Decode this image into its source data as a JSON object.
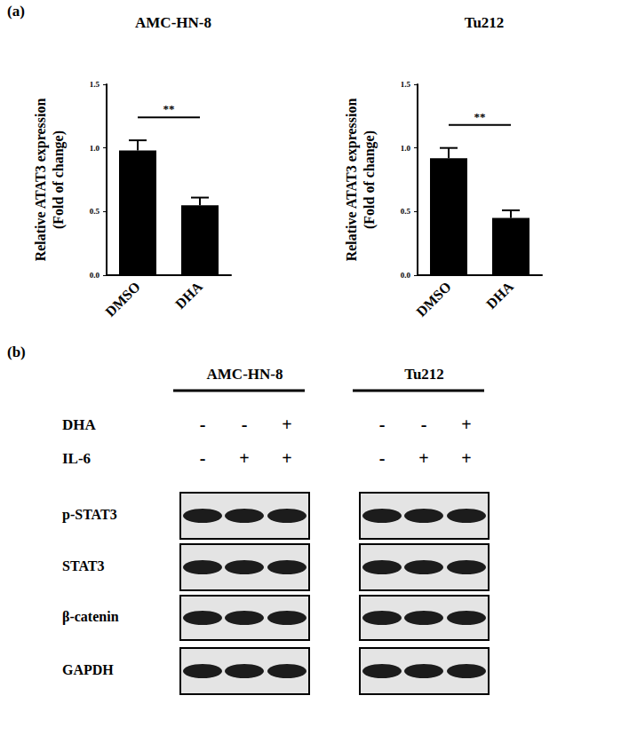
{
  "panel_label": "(a)",
  "chart_data": [
    {
      "type": "bar",
      "title": "AMC-HN-8",
      "categories": [
        "DMSO",
        "DHA"
      ],
      "values": [
        0.98,
        0.55
      ],
      "errors": [
        0.08,
        0.06
      ],
      "color": "#000000",
      "ylabel": "Relative ATAT3 expression\n(Fold of change)",
      "ylim": [
        0,
        1.5
      ],
      "yticks": [
        {
          "value": 0,
          "label": "0.0"
        },
        {
          "value": 0.5,
          "label": "0.5"
        },
        {
          "value": 1,
          "label": "1.0"
        },
        {
          "value": 1.5,
          "label": "1.5"
        }
      ],
      "annotation": "**",
      "grid": false
    },
    {
      "type": "bar",
      "title": "Tu212",
      "categories": [
        "DMSO",
        "DHA"
      ],
      "values": [
        0.92,
        0.45
      ],
      "errors": [
        0.08,
        0.06
      ],
      "color": "#000000",
      "ylabel": "Relative ATAT3 expression\n(Fold of change)",
      "ylim": [
        0,
        1.5
      ],
      "yticks": [
        {
          "value": 0,
          "label": "0.0"
        },
        {
          "value": 0.5,
          "label": "0.5"
        },
        {
          "value": 1,
          "label": "1.0"
        },
        {
          "value": 1.5,
          "label": "1.5"
        }
      ],
      "annotation": "**",
      "grid": false
    }
  ],
  "blot": {
    "panel_label": "(b)",
    "treatment_names": [
      "DHA",
      "IL-6"
    ],
    "groups": [
      {
        "name": "AMC-HN-8",
        "signs": [
          [
            "-",
            "-",
            "+"
          ],
          [
            "-",
            "+",
            "+"
          ]
        ]
      },
      {
        "name": "Tu212",
        "signs": [
          [
            "-",
            "-",
            "+"
          ],
          [
            "-",
            "+",
            "+"
          ]
        ]
      }
    ],
    "rows": [
      "p-STAT3",
      "STAT3",
      "β-catenin",
      "GAPDH"
    ]
  }
}
